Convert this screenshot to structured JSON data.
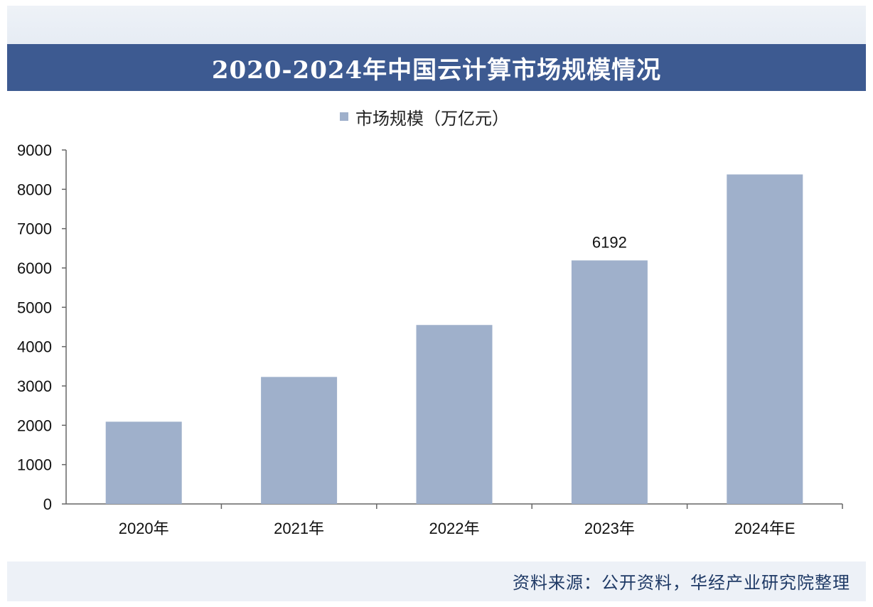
{
  "title": "2020-2024年中国云计算市场规模情况",
  "source": "资料来源：公开资料，华经产业研究院整理",
  "colors": {
    "title_bar": "#3d5a91",
    "bar": "#9fb0cb",
    "axis": "#666666",
    "source_text": "#1f3a66"
  },
  "chart_data": {
    "type": "bar",
    "categories": [
      "2020年",
      "2021年",
      "2022年",
      "2023年",
      "2024年E"
    ],
    "series": [
      {
        "name": "市场规模（万亿元）",
        "values": [
          2091,
          3229,
          4550,
          6192,
          8378
        ]
      }
    ],
    "data_labels": [
      null,
      null,
      null,
      "6192",
      null
    ],
    "ylim": [
      0,
      9000
    ],
    "yticks": [
      0,
      1000,
      2000,
      3000,
      4000,
      5000,
      6000,
      7000,
      8000,
      9000
    ],
    "ytick_labels": [
      "0",
      "1000",
      "2000",
      "3000",
      "4000",
      "5000",
      "6000",
      "7000",
      "8000",
      "9000"
    ],
    "legend_position": "top-center",
    "grid": false
  }
}
